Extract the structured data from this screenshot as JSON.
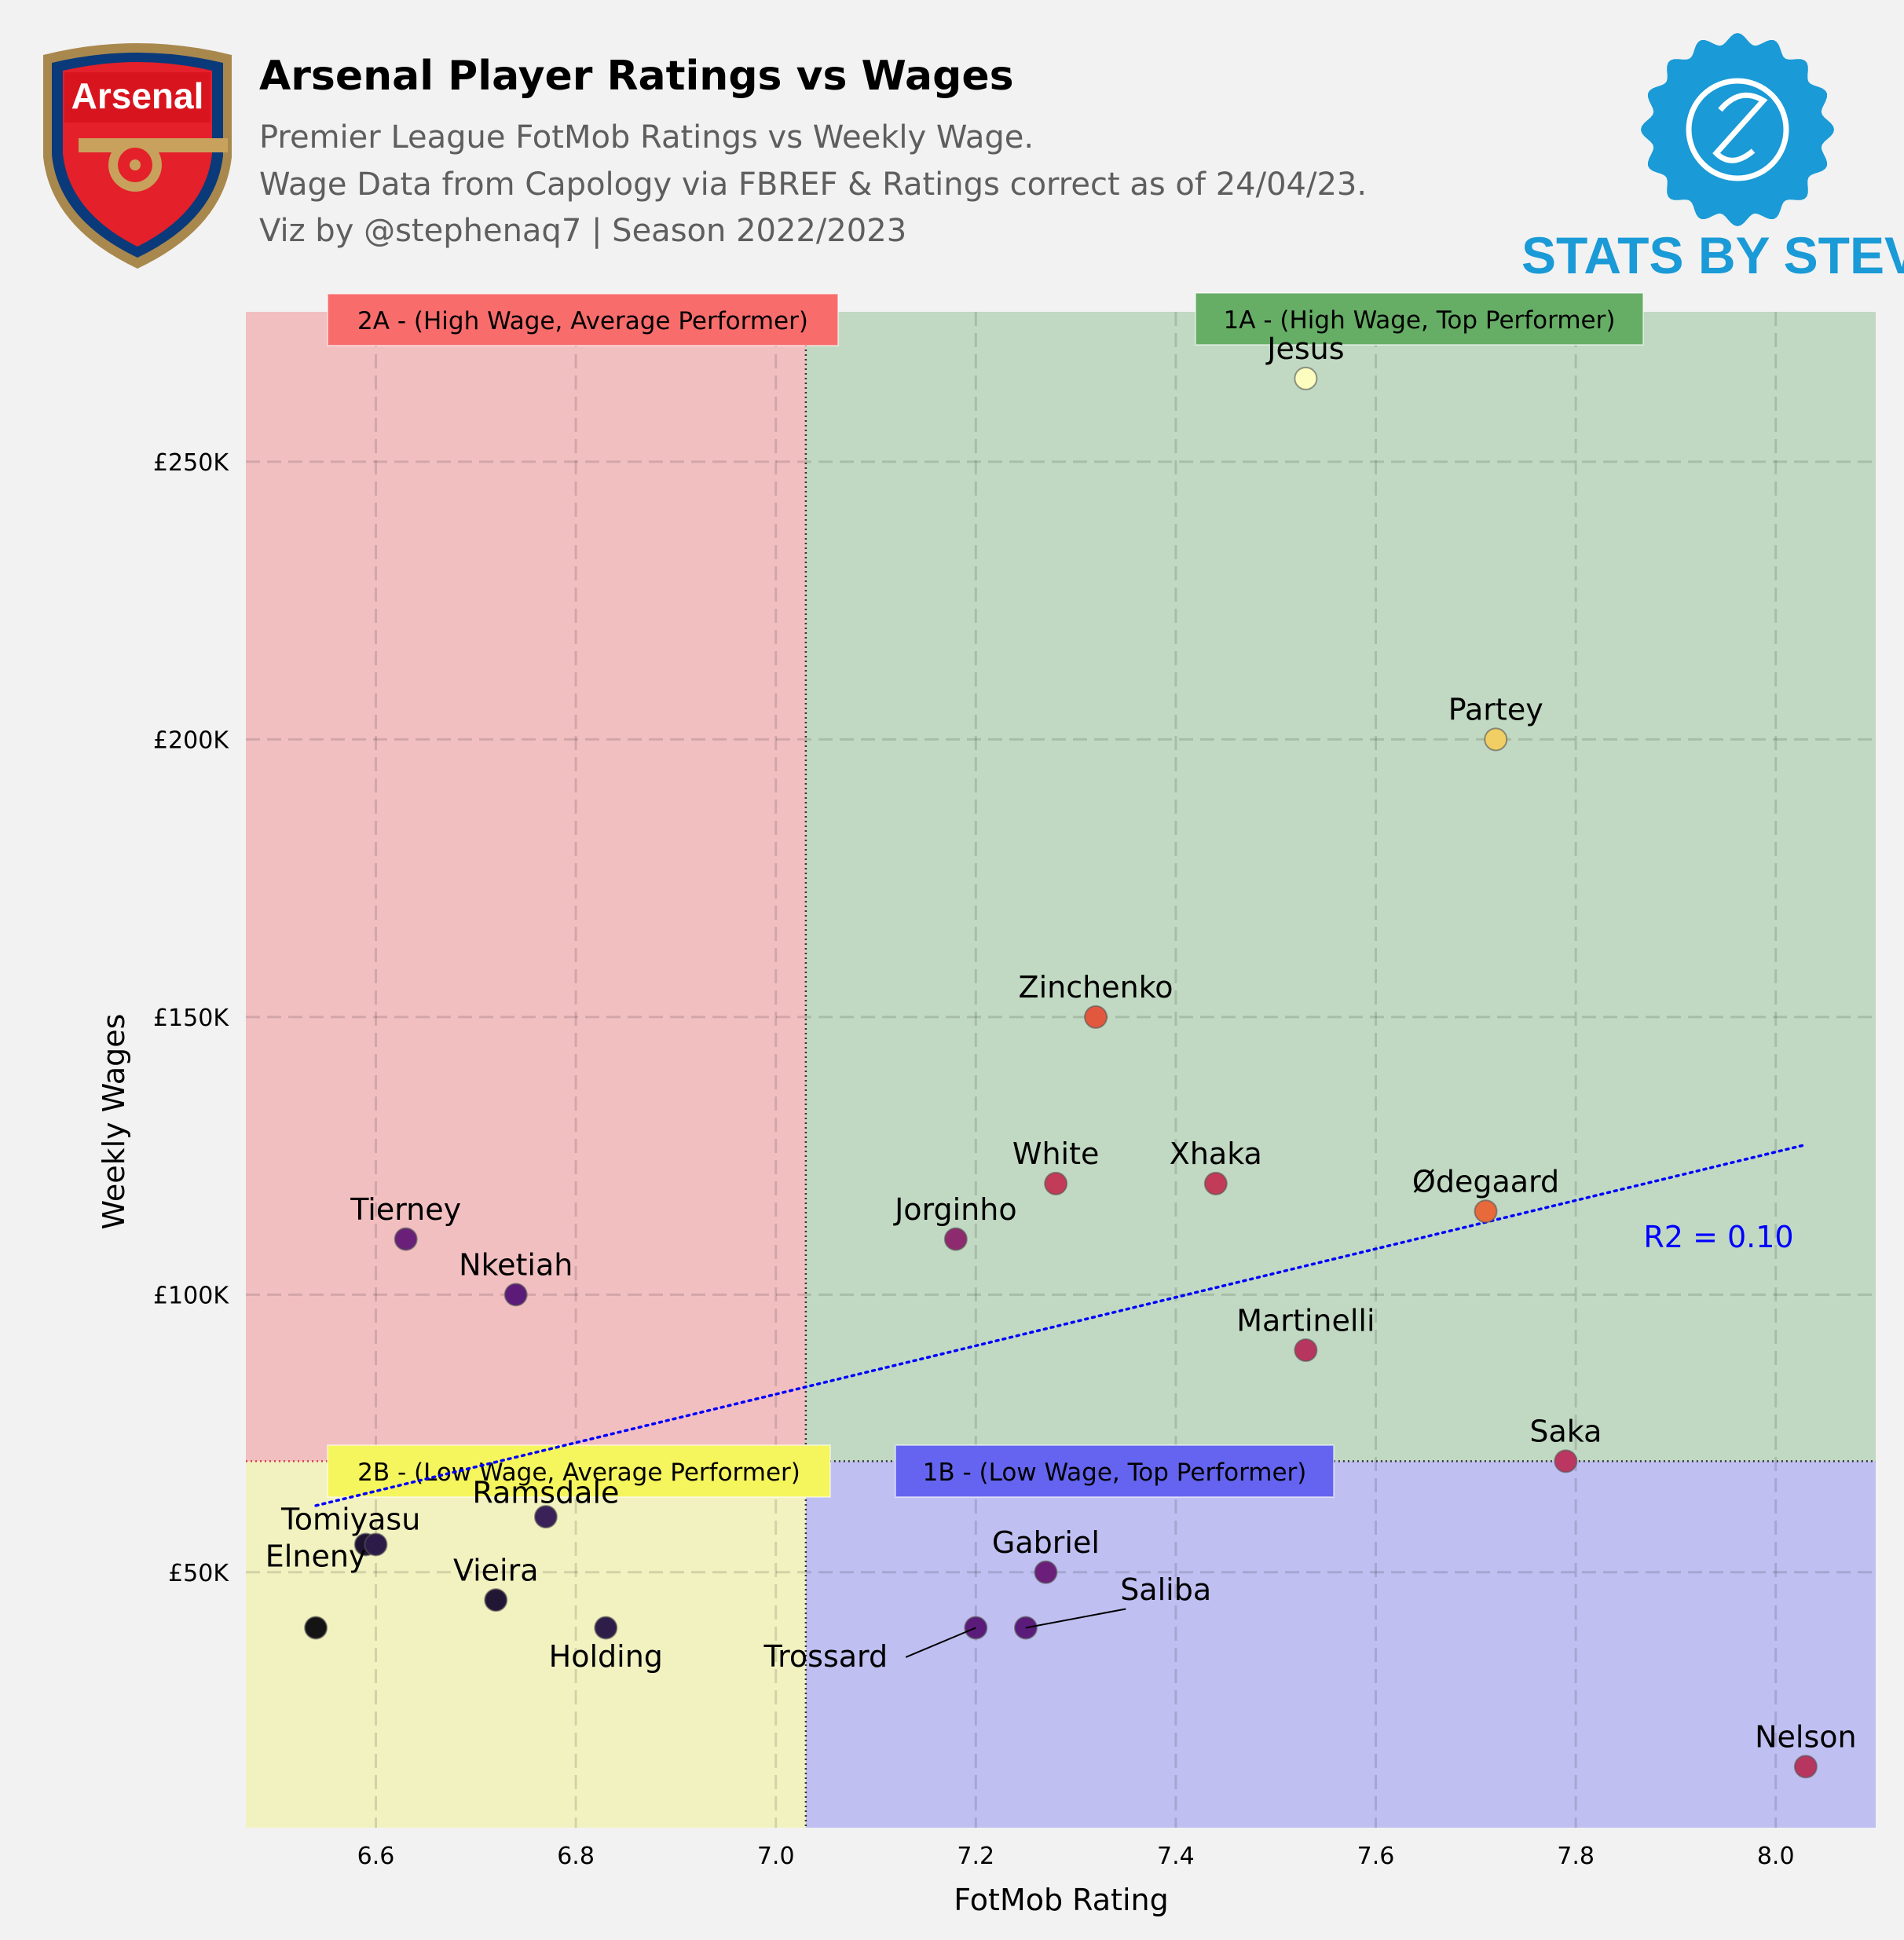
{
  "header": {
    "title": "Arsenal Player Ratings vs Wages",
    "subtitle_lines": [
      "Premier League FotMob Ratings vs Weekly Wage.",
      "Wage Data from Capology via FBREF & Ratings correct as of 24/04/23.",
      "Viz by @stephenaq7 | Season 2022/2023"
    ]
  },
  "logos": {
    "club_badge_text": "Arsenal",
    "brand_text": "STATS BY STEVE",
    "brand_color": "#1a9ad6"
  },
  "chart_data": {
    "type": "scatter",
    "title": "Arsenal Player Ratings vs Wages",
    "xlabel": "FotMob Rating",
    "ylabel": "Weekly Wages",
    "xlim": [
      6.47,
      8.1
    ],
    "ylim": [
      4000,
      277000
    ],
    "x_ticks": [
      6.6,
      6.8,
      7.0,
      7.2,
      7.4,
      7.6,
      7.8,
      8.0
    ],
    "x_tick_labels": [
      "6.6",
      "6.8",
      "7.0",
      "7.2",
      "7.4",
      "7.6",
      "7.8",
      "8.0"
    ],
    "y_ticks": [
      50000,
      100000,
      150000,
      200000,
      250000
    ],
    "y_tick_labels": [
      "£50K",
      "£100K",
      "£150K",
      "£200K",
      "£250K"
    ],
    "grid": true,
    "quadrant_split": {
      "x": 7.03,
      "y": 70000
    },
    "quadrants": [
      {
        "id": "2A",
        "label": "2A - (High Wage, Average Performer)",
        "fill": "#f2bfc1",
        "box": "#f86c6c"
      },
      {
        "id": "1A",
        "label": "1A - (High Wage, Top Performer)",
        "fill": "#c1d9c2",
        "box": "#66ad66"
      },
      {
        "id": "2B",
        "label": "2B - (Low Wage, Average Performer)",
        "fill": "#f2f2c1",
        "box": "#f5f55e"
      },
      {
        "id": "1B",
        "label": "1B - (Low Wage, Top Performer)",
        "fill": "#bfbff2",
        "box": "#6464f0"
      }
    ],
    "points": [
      {
        "name": "Jesus",
        "x": 7.53,
        "y": 265000,
        "color": "#fcfdbf"
      },
      {
        "name": "Partey",
        "x": 7.72,
        "y": 200000,
        "color": "#f1cf64"
      },
      {
        "name": "Zinchenko",
        "x": 7.32,
        "y": 150000,
        "color": "#e2583e"
      },
      {
        "name": "White",
        "x": 7.28,
        "y": 120000,
        "color": "#c23b57"
      },
      {
        "name": "Xhaka",
        "x": 7.44,
        "y": 120000,
        "color": "#c23b57"
      },
      {
        "name": "Ødegaard",
        "x": 7.71,
        "y": 115000,
        "color": "#e86a3a"
      },
      {
        "name": "Jorginho",
        "x": 7.18,
        "y": 110000,
        "color": "#8e2b6e"
      },
      {
        "name": "Tierney",
        "x": 6.63,
        "y": 110000,
        "color": "#6a2078"
      },
      {
        "name": "Nketiah",
        "x": 6.74,
        "y": 100000,
        "color": "#5c1b78"
      },
      {
        "name": "Martinelli",
        "x": 7.53,
        "y": 90000,
        "color": "#b73660"
      },
      {
        "name": "Saka",
        "x": 7.79,
        "y": 70000,
        "color": "#bb3762"
      },
      {
        "name": "Ramsdale",
        "x": 6.77,
        "y": 60000,
        "color": "#3a2157"
      },
      {
        "name": "Tomiyasu",
        "x": 6.59,
        "y": 55000,
        "color": "#1e1432"
      },
      {
        "name": "Tomiyasu-2",
        "x": 6.6,
        "y": 55000,
        "color": "#2c1a48"
      },
      {
        "name": "Gabriel",
        "x": 7.27,
        "y": 50000,
        "color": "#6b1f7a"
      },
      {
        "name": "Vieira",
        "x": 6.72,
        "y": 45000,
        "color": "#221635"
      },
      {
        "name": "Elneny",
        "x": 6.54,
        "y": 40000,
        "color": "#141414"
      },
      {
        "name": "Holding",
        "x": 6.83,
        "y": 40000,
        "color": "#2e1d48"
      },
      {
        "name": "Trossard",
        "x": 7.2,
        "y": 40000,
        "color": "#5a1b7a"
      },
      {
        "name": "Saliba",
        "x": 7.25,
        "y": 40000,
        "color": "#5a1b7a"
      },
      {
        "name": "Nelson",
        "x": 8.03,
        "y": 15000,
        "color": "#b73660"
      }
    ],
    "labels": [
      {
        "text": "Jesus",
        "x": 7.53,
        "y": 268500
      },
      {
        "text": "Partey",
        "x": 7.72,
        "y": 203500
      },
      {
        "text": "Zinchenko",
        "x": 7.32,
        "y": 153500
      },
      {
        "text": "White",
        "x": 7.28,
        "y": 123500
      },
      {
        "text": "Xhaka",
        "x": 7.44,
        "y": 123500
      },
      {
        "text": "Ødegaard",
        "x": 7.71,
        "y": 118500
      },
      {
        "text": "Jorginho",
        "x": 7.18,
        "y": 113500
      },
      {
        "text": "Tierney",
        "x": 6.63,
        "y": 113500
      },
      {
        "text": "Nketiah",
        "x": 6.74,
        "y": 103500
      },
      {
        "text": "Martinelli",
        "x": 7.53,
        "y": 93500
      },
      {
        "text": "Saka",
        "x": 7.79,
        "y": 73500
      },
      {
        "text": "Ramsdale",
        "x": 6.77,
        "y": 62500
      },
      {
        "text": "Tomiyasu",
        "x": 6.575,
        "y": 57700
      },
      {
        "text": "Gabriel",
        "x": 7.27,
        "y": 53500
      },
      {
        "text": "Vieira",
        "x": 6.72,
        "y": 48500
      },
      {
        "text": "Elneny",
        "x": 6.54,
        "y": 51000
      },
      {
        "text": "Holding",
        "x": 6.83,
        "y": 33000
      },
      {
        "text": "Trossard",
        "x": 7.05,
        "y": 33000
      },
      {
        "text": "Saliba",
        "x": 7.39,
        "y": 45000
      },
      {
        "text": "Nelson",
        "x": 8.03,
        "y": 18500
      }
    ],
    "leader_lines": [
      {
        "from": [
          7.13,
          34700
        ],
        "to": [
          7.2,
          40000
        ]
      },
      {
        "from": [
          7.35,
          43400
        ],
        "to": [
          7.25,
          40000
        ]
      }
    ],
    "trendline": {
      "x": [
        6.54,
        8.03
      ],
      "y": [
        62000,
        127000
      ],
      "color": "#0000ff"
    },
    "r2_label": "R2 = 0.10"
  }
}
